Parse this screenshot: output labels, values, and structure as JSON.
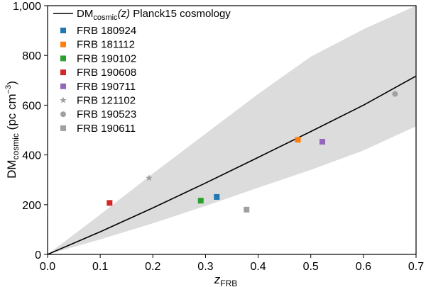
{
  "chart_data": {
    "type": "scatter",
    "xlim": [
      0.0,
      0.7
    ],
    "ylim": [
      0,
      1000
    ],
    "x_ticks": [
      "0.0",
      "0.1",
      "0.2",
      "0.3",
      "0.4",
      "0.5",
      "0.6",
      "0.7"
    ],
    "y_ticks": [
      "0",
      "200",
      "400",
      "600",
      "800",
      "1,000"
    ],
    "xlabel": {
      "main": "z",
      "sub": "FRB"
    },
    "ylabel": {
      "main": "DM",
      "sub": "cosmic",
      "unit": "(pc cm",
      "unit_sup": "−3",
      "unit_end": ")"
    },
    "grid": false,
    "legend_position": "top-left",
    "model_line": {
      "label_prefix": "DM",
      "label_sub": "cosmic",
      "label_arg": "(z)",
      "label_suffix": " Planck15 cosmology",
      "x": [
        0.0,
        0.1,
        0.2,
        0.3,
        0.4,
        0.5,
        0.6,
        0.7
      ],
      "y": [
        0,
        91,
        187,
        287,
        390,
        494,
        600,
        717
      ],
      "color": "#000000"
    },
    "band": {
      "x": [
        0.0,
        0.1,
        0.2,
        0.3,
        0.4,
        0.5,
        0.6,
        0.7
      ],
      "upper": [
        0,
        160,
        325,
        485,
        645,
        795,
        905,
        1000
      ],
      "lower": [
        0,
        60,
        125,
        195,
        268,
        340,
        418,
        515
      ],
      "color": "#dcdcdc"
    },
    "series": [
      {
        "name": "FRB 180924",
        "marker": "square",
        "color": "#1f77b4",
        "x": 0.3214,
        "y": 231
      },
      {
        "name": "FRB 181112",
        "marker": "square",
        "color": "#ff7f0e",
        "x": 0.4755,
        "y": 461
      },
      {
        "name": "FRB 190102",
        "marker": "square",
        "color": "#2ca02c",
        "x": 0.291,
        "y": 216
      },
      {
        "name": "FRB 190608",
        "marker": "square",
        "color": "#d62728",
        "x": 0.1178,
        "y": 207
      },
      {
        "name": "FRB 190711",
        "marker": "square",
        "color": "#9467bd",
        "x": 0.522,
        "y": 453
      },
      {
        "name": "FRB 121102",
        "marker": "star",
        "color": "#a0a0a0",
        "x": 0.19273,
        "y": 307
      },
      {
        "name": "FRB 190523",
        "marker": "circle",
        "color": "#a0a0a0",
        "x": 0.66,
        "y": 645
      },
      {
        "name": "FRB 190611",
        "marker": "square",
        "color": "#a0a0a0",
        "x": 0.378,
        "y": 180
      }
    ]
  }
}
